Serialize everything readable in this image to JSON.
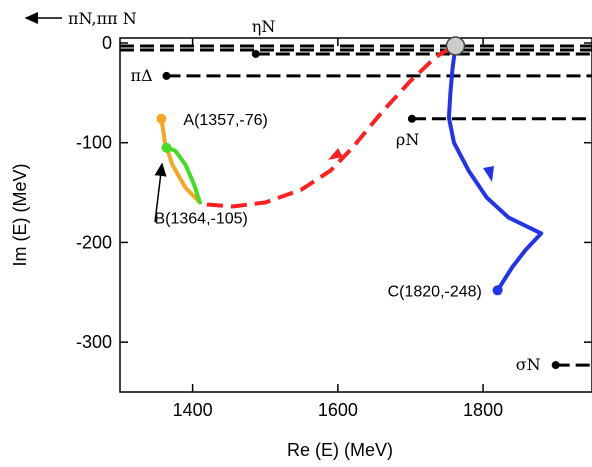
{
  "chart_data": {
    "type": "line",
    "title": "",
    "xlabel": "Re (E) (MeV)",
    "ylabel": "Im (E) (MeV)",
    "xlim": [
      1300,
      1950
    ],
    "ylim": [
      -350,
      5
    ],
    "xticks": [
      1400,
      1600,
      1800
    ],
    "yticks": [
      0,
      -100,
      -200,
      -300
    ],
    "grid": false,
    "legend": "none",
    "top_left_note": "πN,ππ N",
    "thresholds": [
      {
        "label": "ηN",
        "x_start": 1487,
        "y": -11
      },
      {
        "label": "πΔ",
        "x_start": 1364,
        "y": -33
      },
      {
        "label": "ρN",
        "x_start": 1702,
        "y": -76
      },
      {
        "label": "σN",
        "x_start": 1900,
        "y": -323
      }
    ],
    "top_dashed_lines": [
      -3,
      -7
    ],
    "series": [
      {
        "color": "#ff2020",
        "style": "dashed",
        "points": [
          [
            1755,
            -5
          ],
          [
            1735,
            -14
          ],
          [
            1700,
            -38
          ],
          [
            1660,
            -70
          ],
          [
            1620,
            -105
          ],
          [
            1590,
            -128
          ],
          [
            1550,
            -147
          ],
          [
            1500,
            -160
          ],
          [
            1455,
            -164
          ],
          [
            1420,
            -162
          ],
          [
            1410,
            -160
          ]
        ]
      },
      {
        "color": "#f5a623",
        "style": "solid",
        "points": [
          [
            1357,
            -76
          ],
          [
            1362,
            -100
          ],
          [
            1372,
            -122
          ],
          [
            1390,
            -145
          ],
          [
            1410,
            -160
          ]
        ]
      },
      {
        "color": "#44dd22",
        "style": "solid",
        "points": [
          [
            1364,
            -105
          ],
          [
            1376,
            -108
          ],
          [
            1390,
            -122
          ],
          [
            1402,
            -142
          ],
          [
            1410,
            -160
          ]
        ]
      },
      {
        "color": "#2233ee",
        "style": "solid",
        "points": [
          [
            1762,
            -3
          ],
          [
            1758,
            -25
          ],
          [
            1755,
            -50
          ],
          [
            1753,
            -75
          ],
          [
            1760,
            -100
          ],
          [
            1780,
            -128
          ],
          [
            1805,
            -155
          ],
          [
            1835,
            -175
          ],
          [
            1880,
            -191
          ],
          [
            1858,
            -208
          ],
          [
            1840,
            -225
          ],
          [
            1820,
            -248
          ]
        ]
      }
    ],
    "markers": [
      {
        "x": 1762,
        "y": -3,
        "color": "#cccccc",
        "label": ""
      },
      {
        "x": 1357,
        "y": -76,
        "color": "#f5a623",
        "label": "A(1357,-76)"
      },
      {
        "x": 1364,
        "y": -105,
        "color": "#44dd22",
        "label": "B(1364,-105)"
      },
      {
        "x": 1820,
        "y": -248,
        "color": "#2233ee",
        "label": "C(1820,-248)"
      }
    ]
  }
}
